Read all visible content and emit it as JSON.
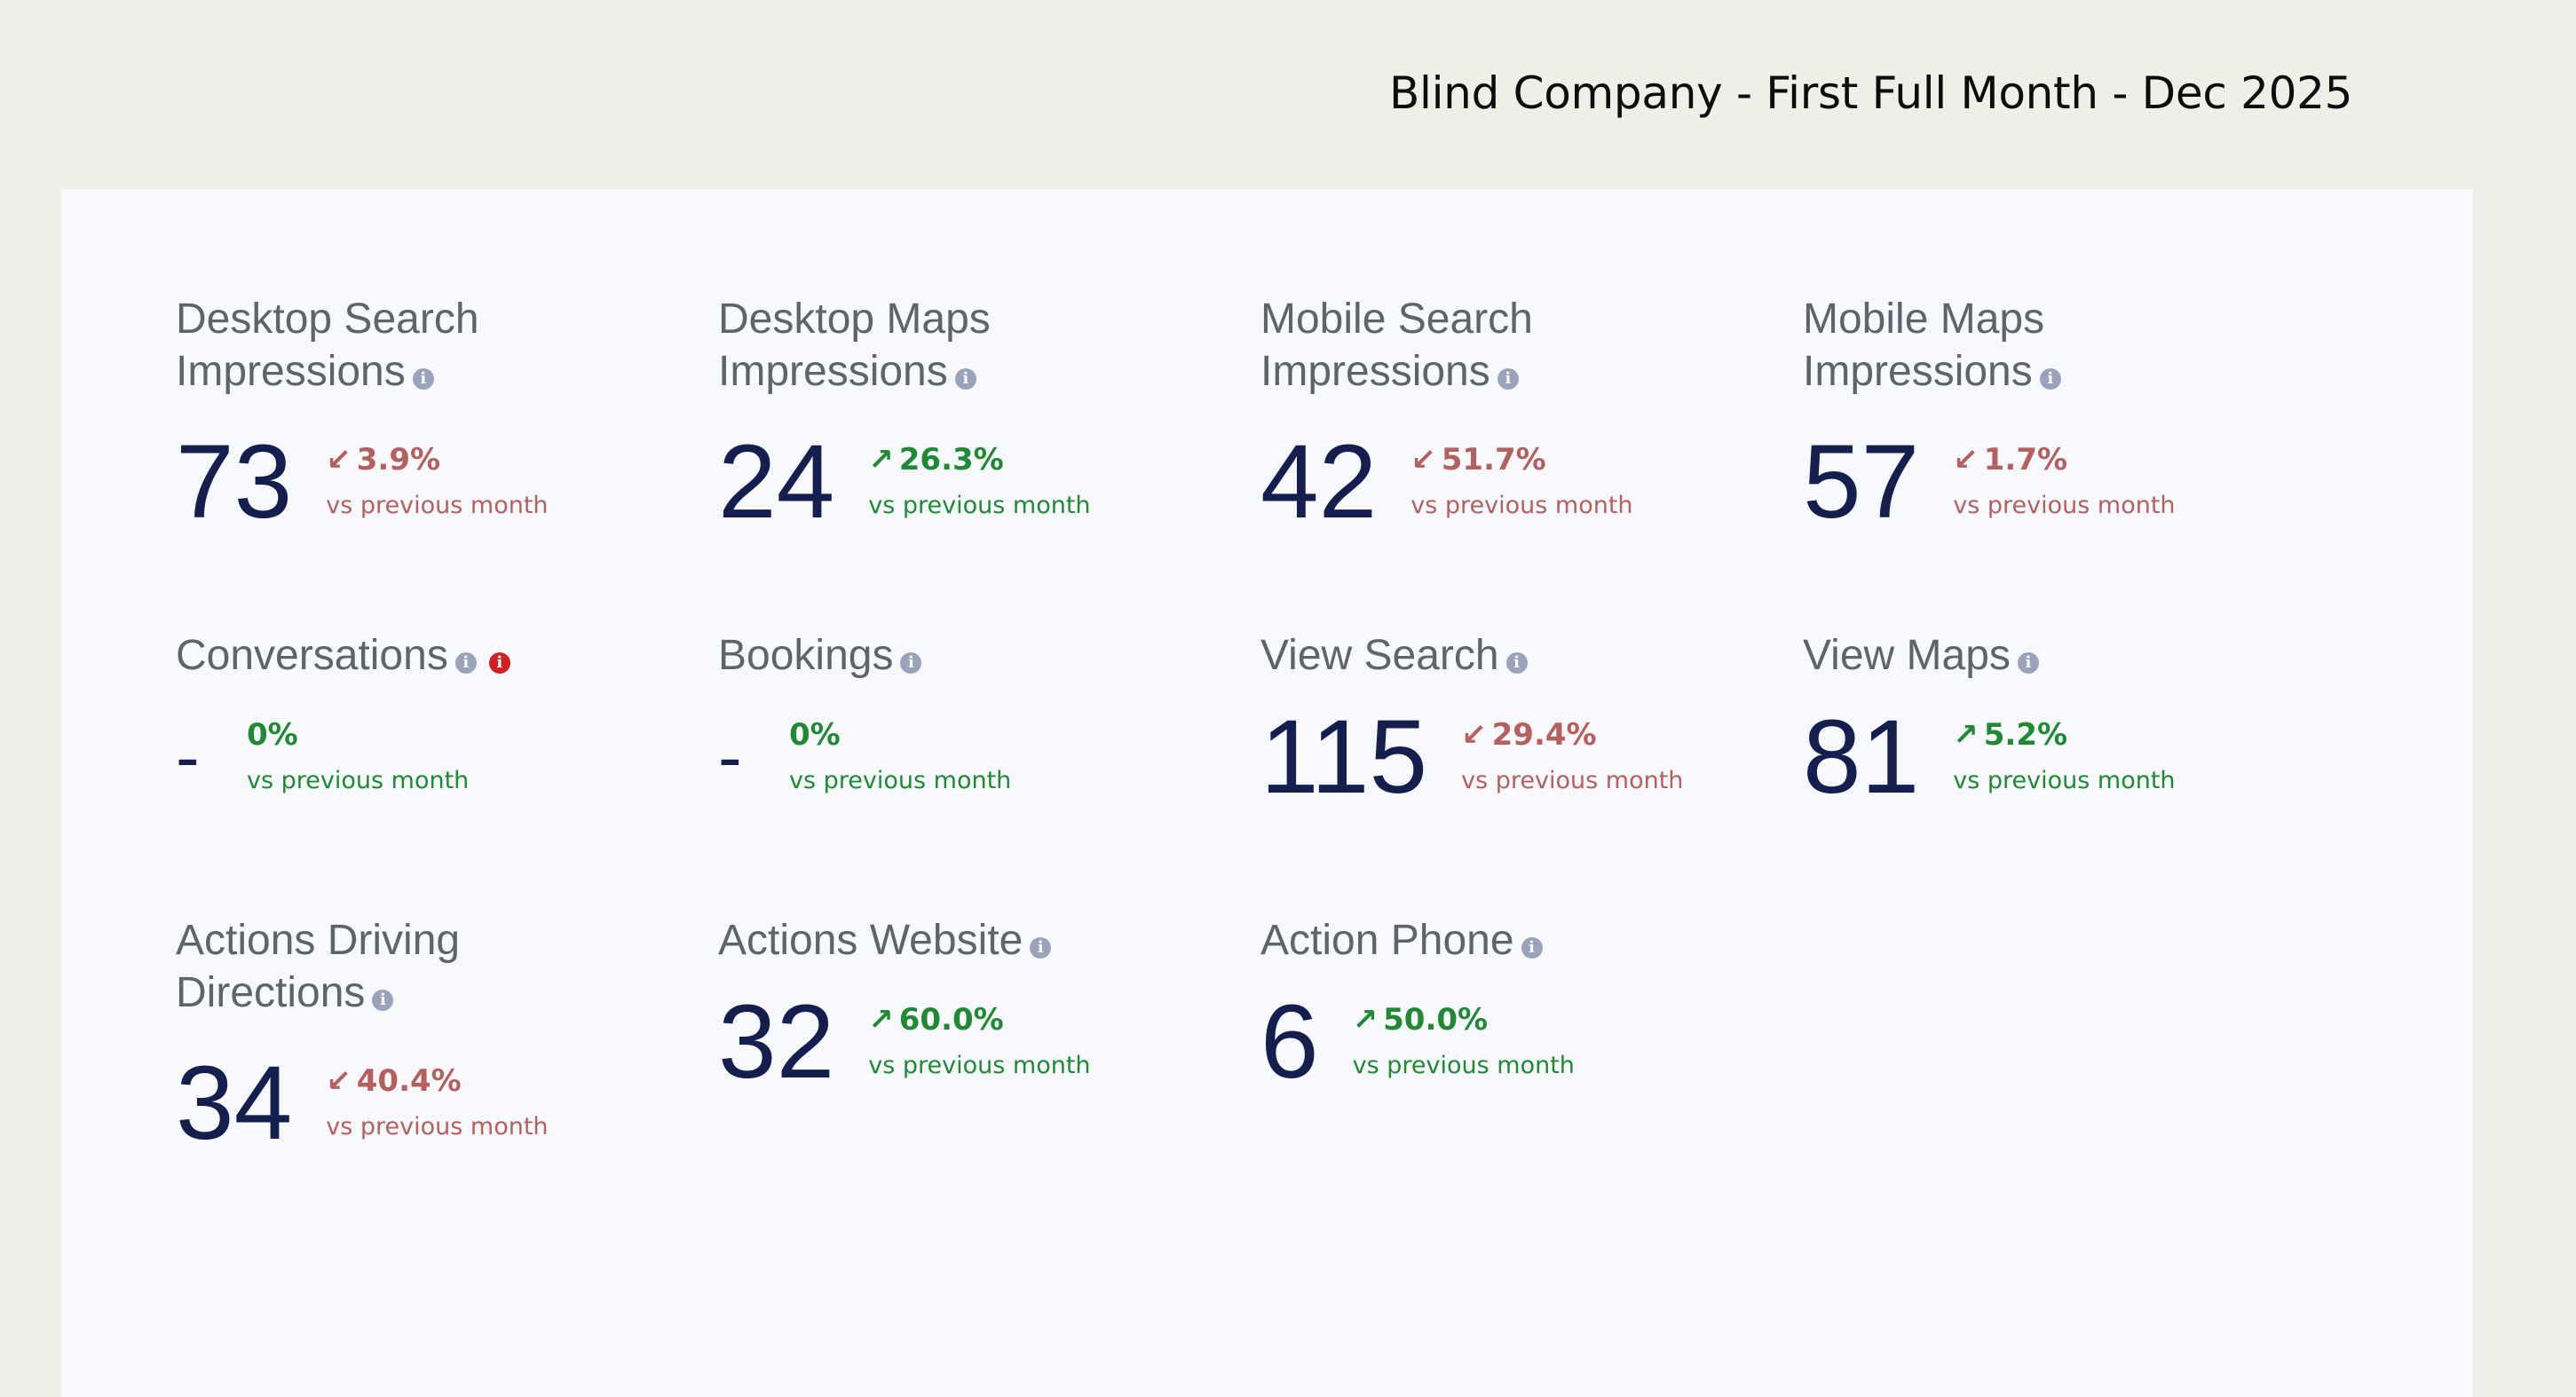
{
  "header": {
    "title": "Blind Company - First Full Month - Dec 2025"
  },
  "colors": {
    "background": "#efeee7",
    "panel": "#f8f9fc",
    "value": "#141f4f",
    "label": "#5f636b",
    "negative": "#b65f5f",
    "positive": "#1f8a33",
    "info_icon": "#9aa3bb",
    "alert_icon": "#d12121"
  },
  "cards": {
    "desktop_search": {
      "title_line1": "Desktop Search",
      "title_line2": "Impressions",
      "value": "73",
      "change": "3.9%",
      "direction": "down",
      "comparison": "vs previous month"
    },
    "desktop_maps": {
      "title_line1": "Desktop Maps",
      "title_line2": "Impressions",
      "value": "24",
      "change": "26.3%",
      "direction": "up",
      "comparison": "vs previous month"
    },
    "mobile_search": {
      "title_line1": "Mobile Search",
      "title_line2": "Impressions",
      "value": "42",
      "change": "51.7%",
      "direction": "down",
      "comparison": "vs previous month"
    },
    "mobile_maps": {
      "title_line1": "Mobile Maps",
      "title_line2": "Impressions",
      "value": "57",
      "change": "1.7%",
      "direction": "down",
      "comparison": "vs previous month"
    },
    "conversations": {
      "title": "Conversations",
      "value": "-",
      "change": "0%",
      "direction": "neutral",
      "comparison": "vs previous month"
    },
    "bookings": {
      "title": "Bookings",
      "value": "-",
      "change": "0%",
      "direction": "neutral",
      "comparison": "vs previous month"
    },
    "view_search": {
      "title": "View Search",
      "value": "115",
      "change": "29.4%",
      "direction": "down",
      "comparison": "vs previous month"
    },
    "view_maps": {
      "title": "View Maps",
      "value": "81",
      "change": "5.2%",
      "direction": "up",
      "comparison": "vs previous month"
    },
    "actions_driving": {
      "title_line1": "Actions Driving",
      "title_line2": "Directions",
      "value": "34",
      "change": "40.4%",
      "direction": "down",
      "comparison": "vs previous month"
    },
    "actions_website": {
      "title": "Actions Website",
      "value": "32",
      "change": "60.0%",
      "direction": "up",
      "comparison": "vs previous month"
    },
    "action_phone": {
      "title": "Action Phone",
      "value": "6",
      "change": "50.0%",
      "direction": "up",
      "comparison": "vs previous month"
    }
  },
  "icons": {
    "info": "i",
    "arrow_up": "↗",
    "arrow_down": "↙"
  }
}
